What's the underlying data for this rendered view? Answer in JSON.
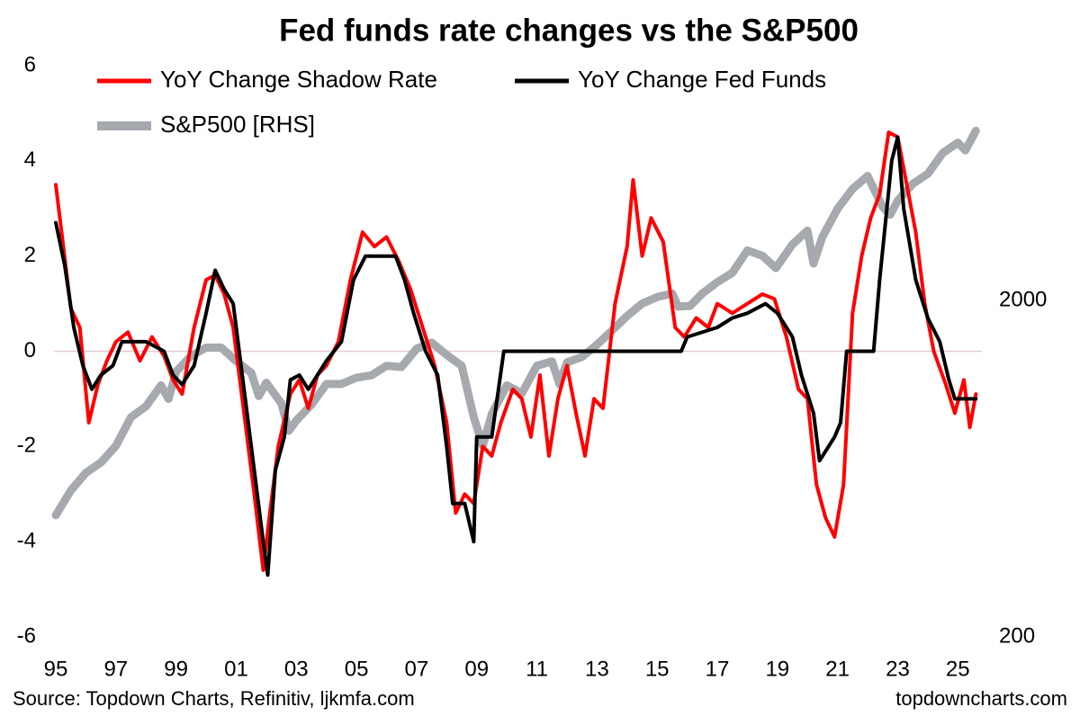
{
  "chart_data": {
    "type": "line",
    "title": "Fed funds rate changes vs the S&P500",
    "source": "Source: Topdown Charts, Refinitiv, ljkmfa.com",
    "watermark": "topdowncharts.com",
    "xlim": [
      1995,
      2025.8
    ],
    "xticks": [
      {
        "value": 1995,
        "label": "95"
      },
      {
        "value": 1997,
        "label": "97"
      },
      {
        "value": 1999,
        "label": "99"
      },
      {
        "value": 2001,
        "label": "01"
      },
      {
        "value": 2003,
        "label": "03"
      },
      {
        "value": 2005,
        "label": "05"
      },
      {
        "value": 2007,
        "label": "07"
      },
      {
        "value": 2009,
        "label": "09"
      },
      {
        "value": 2011,
        "label": "11"
      },
      {
        "value": 2013,
        "label": "13"
      },
      {
        "value": 2015,
        "label": "15"
      },
      {
        "value": 2017,
        "label": "17"
      },
      {
        "value": 2019,
        "label": "19"
      },
      {
        "value": 2021,
        "label": "21"
      },
      {
        "value": 2023,
        "label": "23"
      },
      {
        "value": 2025,
        "label": "25"
      }
    ],
    "ylim": [
      -6,
      6
    ],
    "yticks": [
      -6,
      -4,
      -2,
      0,
      2,
      4,
      6
    ],
    "y2lim": [
      200,
      10000
    ],
    "y2ticks": [
      200,
      2000
    ],
    "y2log": true,
    "grid": false,
    "series": [
      {
        "name": "S&P500 [RHS]",
        "color": "#a6a9ae",
        "axis": "y2",
        "x": [
          1995.0,
          1995.5,
          1996.0,
          1996.5,
          1997.0,
          1997.5,
          1998.0,
          1998.5,
          1998.75,
          1999.0,
          1999.5,
          2000.0,
          2000.5,
          2001.0,
          2001.5,
          2001.75,
          2002.0,
          2002.5,
          2002.75,
          2003.0,
          2003.5,
          2004.0,
          2004.5,
          2005.0,
          2005.5,
          2006.0,
          2006.5,
          2007.0,
          2007.5,
          2008.0,
          2008.5,
          2008.9,
          2009.2,
          2009.5,
          2010.0,
          2010.5,
          2011.0,
          2011.5,
          2011.75,
          2012.0,
          2012.5,
          2013.0,
          2013.5,
          2014.0,
          2014.5,
          2015.0,
          2015.5,
          2015.7,
          2016.1,
          2016.5,
          2017.0,
          2017.5,
          2018.0,
          2018.5,
          2018.95,
          2019.5,
          2020.0,
          2020.2,
          2020.5,
          2021.0,
          2021.5,
          2022.0,
          2022.5,
          2022.75,
          2023.0,
          2023.5,
          2024.0,
          2024.5,
          2025.0,
          2025.25,
          2025.6
        ],
        "values": [
          460,
          545,
          615,
          660,
          740,
          900,
          970,
          1120,
          1020,
          1230,
          1370,
          1450,
          1450,
          1320,
          1220,
          1040,
          1140,
          990,
          820,
          880,
          980,
          1130,
          1130,
          1180,
          1200,
          1280,
          1270,
          1440,
          1500,
          1380,
          1280,
          900,
          740,
          920,
          1120,
          1060,
          1280,
          1320,
          1130,
          1310,
          1360,
          1480,
          1630,
          1800,
          1960,
          2050,
          2100,
          1920,
          1930,
          2100,
          2270,
          2420,
          2820,
          2720,
          2500,
          2940,
          3230,
          2580,
          3100,
          3750,
          4300,
          4700,
          3800,
          3600,
          3970,
          4450,
          4770,
          5500,
          5900,
          5600,
          6400
        ]
      },
      {
        "name": "YoY Change Shadow Rate",
        "color": "#ff0000",
        "x": [
          1995.0,
          1995.25,
          1995.5,
          1995.8,
          1996.1,
          1996.4,
          1996.7,
          1997.0,
          1997.4,
          1997.8,
          1998.2,
          1998.6,
          1998.9,
          1999.2,
          1999.6,
          2000.0,
          2000.3,
          2000.6,
          2000.9,
          2001.3,
          2001.6,
          2001.9,
          2002.1,
          2002.4,
          2002.8,
          2003.1,
          2003.4,
          2003.7,
          2004.0,
          2004.4,
          2004.8,
          2005.2,
          2005.6,
          2006.0,
          2006.4,
          2006.8,
          2007.2,
          2007.6,
          2008.0,
          2008.3,
          2008.6,
          2008.9,
          2009.2,
          2009.5,
          2009.8,
          2010.2,
          2010.5,
          2010.8,
          2011.1,
          2011.4,
          2011.7,
          2012.0,
          2012.3,
          2012.6,
          2012.9,
          2013.2,
          2013.6,
          2014.0,
          2014.2,
          2014.5,
          2014.8,
          2015.2,
          2015.6,
          2015.9,
          2016.3,
          2016.7,
          2017.0,
          2017.5,
          2018.0,
          2018.5,
          2018.9,
          2019.3,
          2019.7,
          2020.0,
          2020.3,
          2020.6,
          2020.9,
          2021.2,
          2021.5,
          2021.8,
          2022.1,
          2022.4,
          2022.7,
          2023.0,
          2023.3,
          2023.6,
          2023.9,
          2024.2,
          2024.6,
          2024.9,
          2025.2,
          2025.4,
          2025.6
        ],
        "values": [
          3.5,
          2.2,
          0.9,
          0.5,
          -1.5,
          -0.7,
          -0.2,
          0.2,
          0.4,
          -0.2,
          0.3,
          -0.1,
          -0.6,
          -0.9,
          0.5,
          1.5,
          1.6,
          1.2,
          0.5,
          -1.5,
          -3.0,
          -4.6,
          -3.5,
          -2.0,
          -0.9,
          -0.6,
          -1.2,
          -0.5,
          -0.3,
          0.2,
          1.5,
          2.5,
          2.2,
          2.4,
          1.9,
          1.3,
          0.5,
          -0.3,
          -1.5,
          -3.4,
          -3.0,
          -3.2,
          -2.0,
          -2.2,
          -1.5,
          -0.8,
          -1.0,
          -1.8,
          -0.5,
          -2.2,
          -1.0,
          -0.3,
          -1.3,
          -2.2,
          -1.0,
          -1.2,
          1.0,
          2.2,
          3.6,
          2.0,
          2.8,
          2.3,
          0.5,
          0.3,
          0.7,
          0.5,
          1.0,
          0.8,
          1.0,
          1.2,
          1.1,
          0.3,
          -0.8,
          -1.0,
          -2.8,
          -3.5,
          -3.9,
          -2.8,
          0.8,
          2.0,
          2.8,
          3.3,
          4.6,
          4.5,
          3.5,
          2.5,
          1.0,
          0.0,
          -0.7,
          -1.3,
          -0.6,
          -1.6,
          -0.9
        ]
      },
      {
        "name": "YoY Change Fed Funds",
        "color": "#000000",
        "x": [
          1995.0,
          1995.3,
          1995.6,
          1995.9,
          1996.2,
          1996.5,
          1996.9,
          1997.2,
          1997.6,
          1998.0,
          1998.6,
          1998.9,
          1999.2,
          1999.6,
          2000.0,
          2000.3,
          2000.6,
          2000.9,
          2001.3,
          2001.6,
          2001.9,
          2002.05,
          2002.3,
          2002.6,
          2002.8,
          2003.1,
          2003.4,
          2003.7,
          2004.0,
          2004.5,
          2004.9,
          2005.3,
          2005.8,
          2006.3,
          2006.6,
          2006.9,
          2007.3,
          2007.7,
          2008.0,
          2008.2,
          2008.6,
          2008.9,
          2009.0,
          2009.5,
          2009.9,
          2015.8,
          2016.0,
          2017.0,
          2017.5,
          2018.0,
          2018.6,
          2019.0,
          2019.5,
          2019.8,
          2020.2,
          2020.4,
          2020.9,
          2021.1,
          2021.3,
          2022.2,
          2022.4,
          2022.8,
          2023.0,
          2023.2,
          2023.6,
          2024.0,
          2024.4,
          2024.7,
          2024.9,
          2025.6
        ],
        "values": [
          2.7,
          1.8,
          0.5,
          -0.3,
          -0.8,
          -0.5,
          -0.3,
          0.2,
          0.2,
          0.2,
          0.0,
          -0.5,
          -0.7,
          -0.3,
          0.8,
          1.7,
          1.3,
          1.0,
          -1.0,
          -2.5,
          -4.0,
          -4.7,
          -2.5,
          -1.8,
          -0.6,
          -0.5,
          -0.8,
          -0.5,
          -0.2,
          0.2,
          1.5,
          2.0,
          2.0,
          2.0,
          1.5,
          0.8,
          0.0,
          -0.5,
          -2.0,
          -3.2,
          -3.2,
          -4.0,
          -1.8,
          -1.8,
          0.0,
          0.0,
          0.3,
          0.5,
          0.7,
          0.8,
          1.0,
          0.8,
          0.3,
          -0.5,
          -1.3,
          -2.3,
          -1.8,
          -1.5,
          0.0,
          0.0,
          1.5,
          4.0,
          4.5,
          3.0,
          1.5,
          0.7,
          0.2,
          -0.6,
          -1.0,
          -1.0
        ]
      }
    ]
  }
}
